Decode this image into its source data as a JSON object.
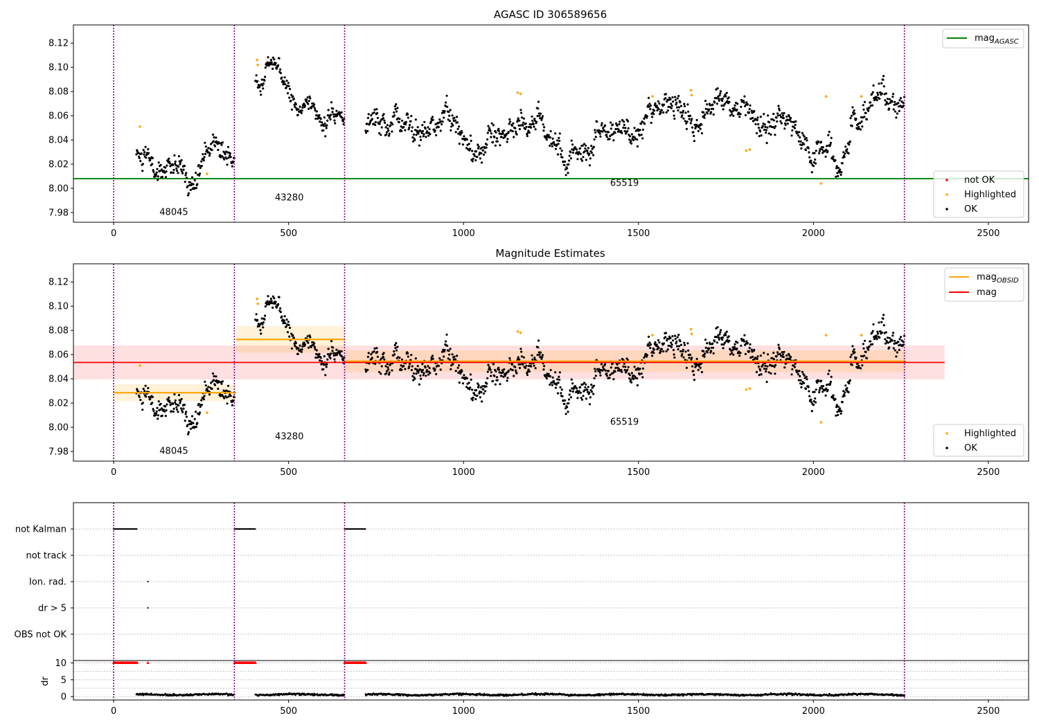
{
  "figure": {
    "title_top": "AGASC ID 306589656",
    "title_mid": "Magnitude Estimates"
  },
  "chart_data": [
    {
      "type": "scatter",
      "title": "AGASC ID 306589656",
      "xlim": [
        -115,
        2615
      ],
      "ylim": [
        7.972,
        8.135
      ],
      "x_ticks": [
        0,
        500,
        1000,
        1500,
        2000,
        2500
      ],
      "y_ticks": [
        7.98,
        8.0,
        8.02,
        8.04,
        8.06,
        8.08,
        8.1,
        8.12
      ],
      "y_tick_labels": [
        "7.98",
        "8.00",
        "8.02",
        "8.04",
        "8.06",
        "8.08",
        "8.10",
        "8.12"
      ],
      "obsid_boundaries": [
        0,
        345,
        660,
        2260
      ],
      "obsid_labels": [
        {
          "text": "48045",
          "x": 172,
          "y": 7.978
        },
        {
          "text": "43280",
          "x": 502,
          "y": 7.99
        },
        {
          "text": "65519",
          "x": 1460,
          "y": 8.002
        }
      ],
      "mag_agasc": 8.008,
      "segments": [
        {
          "x_start": 65,
          "x_end": 345,
          "mean": 8.028,
          "scatter": 0.008
        },
        {
          "x_start": 405,
          "x_end": 660,
          "mean_start": 8.092,
          "mean_end": 8.06,
          "scatter": 0.007
        },
        {
          "x_start": 720,
          "x_end": 2260,
          "mean": 8.055,
          "scatter": 0.009
        }
      ],
      "highlighted_points": [
        {
          "x": 75,
          "y": 8.051
        },
        {
          "x": 267,
          "y": 8.012
        },
        {
          "x": 410,
          "y": 8.106
        },
        {
          "x": 412,
          "y": 8.102
        },
        {
          "x": 1155,
          "y": 8.079
        },
        {
          "x": 1163,
          "y": 8.078
        },
        {
          "x": 1540,
          "y": 8.076
        },
        {
          "x": 1650,
          "y": 8.081
        },
        {
          "x": 1652,
          "y": 8.077
        },
        {
          "x": 1808,
          "y": 8.031
        },
        {
          "x": 1818,
          "y": 8.032
        },
        {
          "x": 2022,
          "y": 8.004
        },
        {
          "x": 2036,
          "y": 8.076
        },
        {
          "x": 2137,
          "y": 8.076
        }
      ],
      "legend_top": [
        {
          "label": "mag",
          "sub": "AGASC",
          "color": "#008000"
        }
      ],
      "legend_bottom": [
        {
          "label": "not OK",
          "color": "#ff0000"
        },
        {
          "label": "Highlighted",
          "color": "#ffa500"
        },
        {
          "label": "OK",
          "color": "#000000"
        }
      ]
    },
    {
      "type": "scatter",
      "title": "Magnitude Estimates",
      "xlim": [
        -115,
        2615
      ],
      "ylim": [
        7.972,
        8.135
      ],
      "x_ticks": [
        0,
        500,
        1000,
        1500,
        2000,
        2500
      ],
      "mag": 8.0535,
      "mag_band": [
        8.0395,
        8.0675
      ],
      "mag_line_x": [
        -115,
        2375
      ],
      "mag_obsid": [
        {
          "x_start": 0,
          "x_end": 350,
          "value": 8.0285,
          "band": [
            8.0215,
            8.0355
          ]
        },
        {
          "x_start": 350,
          "x_end": 660,
          "value": 8.0725,
          "band": [
            8.0615,
            8.0835
          ]
        },
        {
          "x_start": 660,
          "x_end": 2265,
          "value": 8.0545,
          "band": [
            8.0455,
            8.0635
          ]
        }
      ],
      "legend_top": [
        {
          "label": "mag",
          "sub": "OBSID",
          "color": "#ffa500"
        },
        {
          "label": "mag",
          "sub": "",
          "color": "#ff0000"
        }
      ],
      "legend_bottom": [
        {
          "label": "Highlighted",
          "color": "#ffa500"
        },
        {
          "label": "OK",
          "color": "#000000"
        }
      ]
    },
    {
      "type": "scatter",
      "flag_labels": [
        "not Kalman",
        "not track",
        "Ion. rad.",
        "dr > 5",
        "OBS not OK"
      ],
      "flag_ranges": {
        "not Kalman": [
          [
            0,
            68
          ],
          [
            345,
            405
          ],
          [
            660,
            720
          ]
        ],
        "Ion. rad.": [
          [
            98,
            98
          ]
        ],
        "dr > 5": [
          [
            98,
            98
          ]
        ]
      },
      "dr_ylabel": "dr",
      "dr_ticks": [
        0,
        5,
        10
      ],
      "dr_ylim": [
        -1,
        10.5
      ],
      "dr_clipped": [
        [
          0,
          68
        ],
        [
          98,
          98
        ],
        [
          345,
          405
        ],
        [
          660,
          720
        ]
      ],
      "dr_value_typical": 0.6
    }
  ]
}
